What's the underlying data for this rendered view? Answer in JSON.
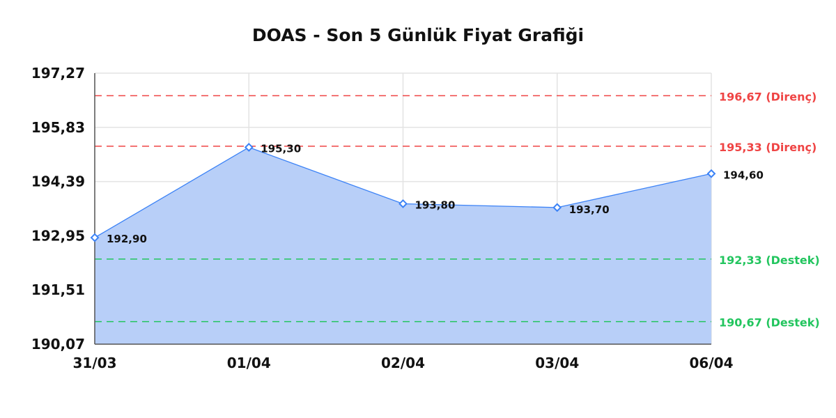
{
  "chart_data": {
    "type": "area",
    "title": "DOAS - Son 5 Günlük Fiyat Grafiği",
    "xlabel": "",
    "ylabel": "",
    "categories": [
      "31/03",
      "01/04",
      "02/04",
      "03/04",
      "06/04"
    ],
    "values": [
      192.9,
      195.3,
      193.8,
      193.7,
      194.6
    ],
    "data_labels": [
      "192,90",
      "195,30",
      "193,80",
      "193,70",
      "194,60"
    ],
    "ylim": [
      190.07,
      197.27
    ],
    "y_ticks": [
      190.07,
      191.51,
      192.95,
      194.39,
      195.83,
      197.27
    ],
    "y_tick_labels": [
      "190,07",
      "191,51",
      "192,95",
      "194,39",
      "195,83",
      "197,27"
    ],
    "grid": true,
    "reference_lines": [
      {
        "value": 196.67,
        "label": "196,67 (Direnç)",
        "color": "#ef4444"
      },
      {
        "value": 195.33,
        "label": "195,33 (Direnç)",
        "color": "#ef4444"
      },
      {
        "value": 192.33,
        "label": "192,33 (Destek)",
        "color": "#22c55e"
      },
      {
        "value": 190.67,
        "label": "190,67 (Destek)",
        "color": "#22c55e"
      }
    ],
    "colors": {
      "line": "#3b82f6",
      "fill": "#b8cff8",
      "grid": "#e3e3e3",
      "axis": "#555555"
    }
  }
}
